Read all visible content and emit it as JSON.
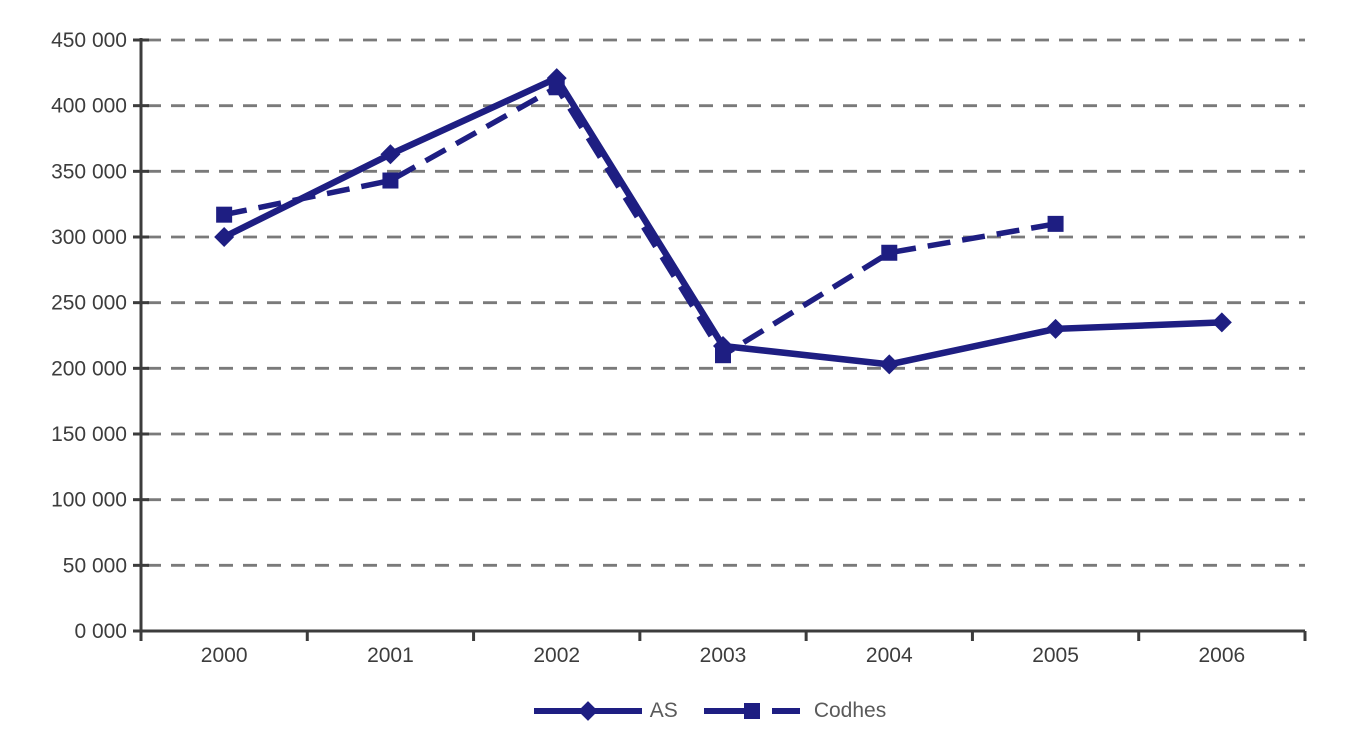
{
  "chart_data": {
    "type": "line",
    "title": "",
    "xlabel": "",
    "ylabel": "",
    "categories": [
      "2000",
      "2001",
      "2002",
      "2003",
      "2004",
      "2005",
      "2006"
    ],
    "series": [
      {
        "name": "AS",
        "marker": "diamond",
        "line_style": "solid",
        "values": [
          300000,
          363000,
          421000,
          217000,
          203000,
          230000,
          235000
        ]
      },
      {
        "name": "Codhes",
        "marker": "square",
        "line_style": "dashed",
        "values": [
          317000,
          343000,
          414000,
          210000,
          288000,
          310000,
          null
        ]
      }
    ],
    "ylim": [
      0,
      450000
    ],
    "ytick_step": 50000,
    "ytick_labels": [
      "0 000",
      "50 000",
      "100 000",
      "150 000",
      "200 000",
      "250 000",
      "300 000",
      "350 000",
      "400 000",
      "450 000"
    ],
    "grid": "horizontal-dashed",
    "legend_position": "bottom-center",
    "colors": {
      "series": "#1e1e82",
      "grid": "#7a7a7a",
      "axis": "#3c3c3c",
      "tick_label": "#3d3d3d",
      "legend_text": "#5a5a5a"
    }
  }
}
